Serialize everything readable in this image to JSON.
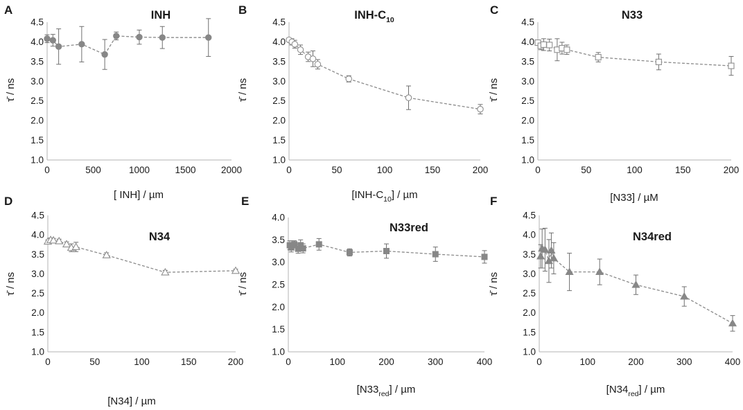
{
  "chart_data": [
    {
      "type": "scatter",
      "panel": "A",
      "title": "INH",
      "title_sub": "",
      "title_after": "",
      "xlabel": "[ INH] / µm",
      "xlabel_sub": "",
      "xlabel_after": "",
      "ylabel": "τ̄ / ns",
      "xlim": [
        0,
        2000
      ],
      "ylim": [
        1.0,
        4.5
      ],
      "xticks": [
        0,
        500,
        1000,
        1500,
        2000
      ],
      "yticks": [
        1.0,
        1.5,
        2.0,
        2.5,
        3.0,
        3.5,
        4.0,
        4.5
      ],
      "marker": "circle",
      "filled": true,
      "x": [
        0,
        62.5,
        125,
        375,
        625,
        750,
        1000,
        1250,
        1750
      ],
      "y": [
        4.08,
        4.04,
        3.88,
        3.94,
        3.68,
        4.15,
        4.12,
        4.11,
        4.11
      ],
      "err": [
        0.1,
        0.15,
        0.45,
        0.45,
        0.38,
        0.1,
        0.18,
        0.28,
        0.48
      ]
    },
    {
      "type": "scatter",
      "panel": "B",
      "title": "INH-C",
      "title_sub": "10",
      "title_after": "",
      "xlabel": "[INH-C",
      "xlabel_sub": "10",
      "xlabel_after": "] / µm",
      "ylabel": "τ̄ / ns",
      "xlim": [
        0,
        200
      ],
      "ylim": [
        1.0,
        4.5
      ],
      "xticks": [
        0,
        50,
        100,
        150,
        200
      ],
      "yticks": [
        1.0,
        1.5,
        2.0,
        2.5,
        3.0,
        3.5,
        4.0,
        4.5
      ],
      "marker": "circle",
      "filled": false,
      "x": [
        0,
        3,
        6,
        12,
        20,
        25,
        30,
        62.5,
        125,
        200
      ],
      "y": [
        4.05,
        4.0,
        3.94,
        3.8,
        3.62,
        3.57,
        3.43,
        3.06,
        2.58,
        2.29
      ],
      "err": [
        0.05,
        0.08,
        0.1,
        0.12,
        0.12,
        0.2,
        0.12,
        0.08,
        0.3,
        0.12
      ]
    },
    {
      "type": "scatter",
      "panel": "C",
      "title": "N33",
      "title_sub": "",
      "title_after": "",
      "xlabel": "[N33] / µM",
      "xlabel_sub": "",
      "xlabel_after": "",
      "ylabel": "τ̄ / ns",
      "xlim": [
        0,
        200
      ],
      "ylim": [
        1.0,
        4.5
      ],
      "xticks": [
        0,
        50,
        100,
        150,
        200
      ],
      "yticks": [
        1.0,
        1.5,
        2.0,
        2.5,
        3.0,
        3.5,
        4.0,
        4.5
      ],
      "marker": "square",
      "filled": false,
      "x": [
        0,
        3,
        6,
        12,
        20,
        25,
        30,
        62.5,
        125,
        200
      ],
      "y": [
        3.98,
        3.9,
        3.93,
        3.92,
        3.8,
        3.84,
        3.8,
        3.61,
        3.49,
        3.39
      ],
      "err": [
        0.06,
        0.1,
        0.15,
        0.15,
        0.28,
        0.15,
        0.12,
        0.12,
        0.2,
        0.24
      ]
    },
    {
      "type": "scatter",
      "panel": "D",
      "title": "N34",
      "title_sub": "",
      "title_after": "",
      "xlabel": "[N34] / µm",
      "xlabel_sub": "",
      "xlabel_after": "",
      "ylabel": "τ̄ / ns",
      "xlim": [
        0,
        200
      ],
      "ylim": [
        1.0,
        4.5
      ],
      "xticks": [
        0,
        50,
        100,
        150,
        200
      ],
      "yticks": [
        1.0,
        1.5,
        2.0,
        2.5,
        3.0,
        3.5,
        4.0,
        4.5
      ],
      "marker": "triangle",
      "filled": false,
      "x": [
        0,
        3,
        6,
        12,
        20,
        25,
        30,
        62.5,
        125,
        200
      ],
      "y": [
        3.83,
        3.87,
        3.86,
        3.84,
        3.76,
        3.67,
        3.69,
        3.48,
        3.04,
        3.08
      ],
      "err": [
        0.04,
        0.05,
        0.05,
        0.05,
        0.06,
        0.1,
        0.12,
        0.06,
        0.05,
        0.04
      ]
    },
    {
      "type": "scatter",
      "panel": "E",
      "title": "N33red",
      "title_sub": "",
      "title_after": "",
      "xlabel": "[N33",
      "xlabel_sub": "red",
      "xlabel_after": "] / µm",
      "ylabel": "τ̄ / ns",
      "xlim": [
        0,
        400
      ],
      "ylim": [
        1.0,
        4.0
      ],
      "xticks": [
        0,
        100,
        200,
        300,
        400
      ],
      "yticks": [
        1.0,
        1.5,
        2.0,
        2.5,
        3.0,
        3.5,
        4.0
      ],
      "marker": "square",
      "filled": true,
      "x": [
        3,
        6,
        12,
        20,
        25,
        30,
        62.5,
        125,
        200,
        300,
        400
      ],
      "y": [
        3.38,
        3.33,
        3.4,
        3.3,
        3.38,
        3.31,
        3.4,
        3.22,
        3.25,
        3.18,
        3.12
      ],
      "err": [
        0.1,
        0.1,
        0.08,
        0.1,
        0.12,
        0.1,
        0.13,
        0.08,
        0.16,
        0.16,
        0.14
      ]
    },
    {
      "type": "scatter",
      "panel": "F",
      "title": "N34red",
      "title_sub": "",
      "title_after": "",
      "xlabel": "[N34",
      "xlabel_sub": "red",
      "xlabel_after": "] / µm",
      "ylabel": "τ̄ / ns",
      "xlim": [
        0,
        400
      ],
      "ylim": [
        1.0,
        4.5
      ],
      "xticks": [
        0,
        100,
        200,
        300,
        400
      ],
      "yticks": [
        1.0,
        1.5,
        2.0,
        2.5,
        3.0,
        3.5,
        4.0,
        4.5
      ],
      "marker": "triangle",
      "filled": true,
      "x": [
        3,
        6,
        12,
        20,
        25,
        30,
        62.5,
        125,
        200,
        300,
        400
      ],
      "y": [
        3.45,
        3.65,
        3.62,
        3.33,
        3.6,
        3.4,
        3.05,
        3.05,
        2.72,
        2.42,
        1.73
      ],
      "err": [
        0.3,
        0.5,
        0.55,
        0.55,
        0.45,
        0.4,
        0.48,
        0.33,
        0.25,
        0.25,
        0.2
      ]
    }
  ]
}
